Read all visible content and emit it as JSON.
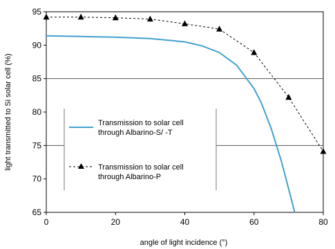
{
  "chart_data": {
    "type": "line",
    "xlabel": "angle of light incidence (°)",
    "ylabel": "light transmitted to Si solar cell (%)",
    "xlim": [
      0,
      80
    ],
    "ylim": [
      65,
      95
    ],
    "x_ticks": [
      "0",
      "20",
      "40",
      "60",
      "80"
    ],
    "y_ticks": [
      "65",
      "70",
      "75",
      "80",
      "85",
      "90",
      "95"
    ],
    "grid_y_values": [
      75,
      85
    ],
    "legend_position": "center-left",
    "series": [
      {
        "name": "Transmission to solar cell through Albarino-S/ -T",
        "legend_lines": [
          "Transmission to solar cell",
          "through Albarino-S/ -T"
        ],
        "style": "solid",
        "marker": "none",
        "color": "#3fa0d0",
        "x": [
          0,
          10,
          20,
          30,
          40,
          45,
          50,
          55,
          60,
          62,
          65,
          68,
          70,
          72
        ],
        "y": [
          91.4,
          91.3,
          91.2,
          91.0,
          90.5,
          89.9,
          88.9,
          87.0,
          83.5,
          81.5,
          77.5,
          72.5,
          68.5,
          64.5
        ]
      },
      {
        "name": "Transmission to solar cell through Albarino-P",
        "legend_lines": [
          "Transmission to solar cell",
          "through Albarino-P"
        ],
        "style": "dashed",
        "marker": "triangle",
        "color": "#000000",
        "x": [
          0,
          10,
          20,
          30,
          40,
          50,
          60,
          70,
          80
        ],
        "y": [
          94.2,
          94.2,
          94.1,
          93.9,
          93.2,
          92.4,
          88.9,
          82.2,
          74.1
        ]
      }
    ]
  }
}
